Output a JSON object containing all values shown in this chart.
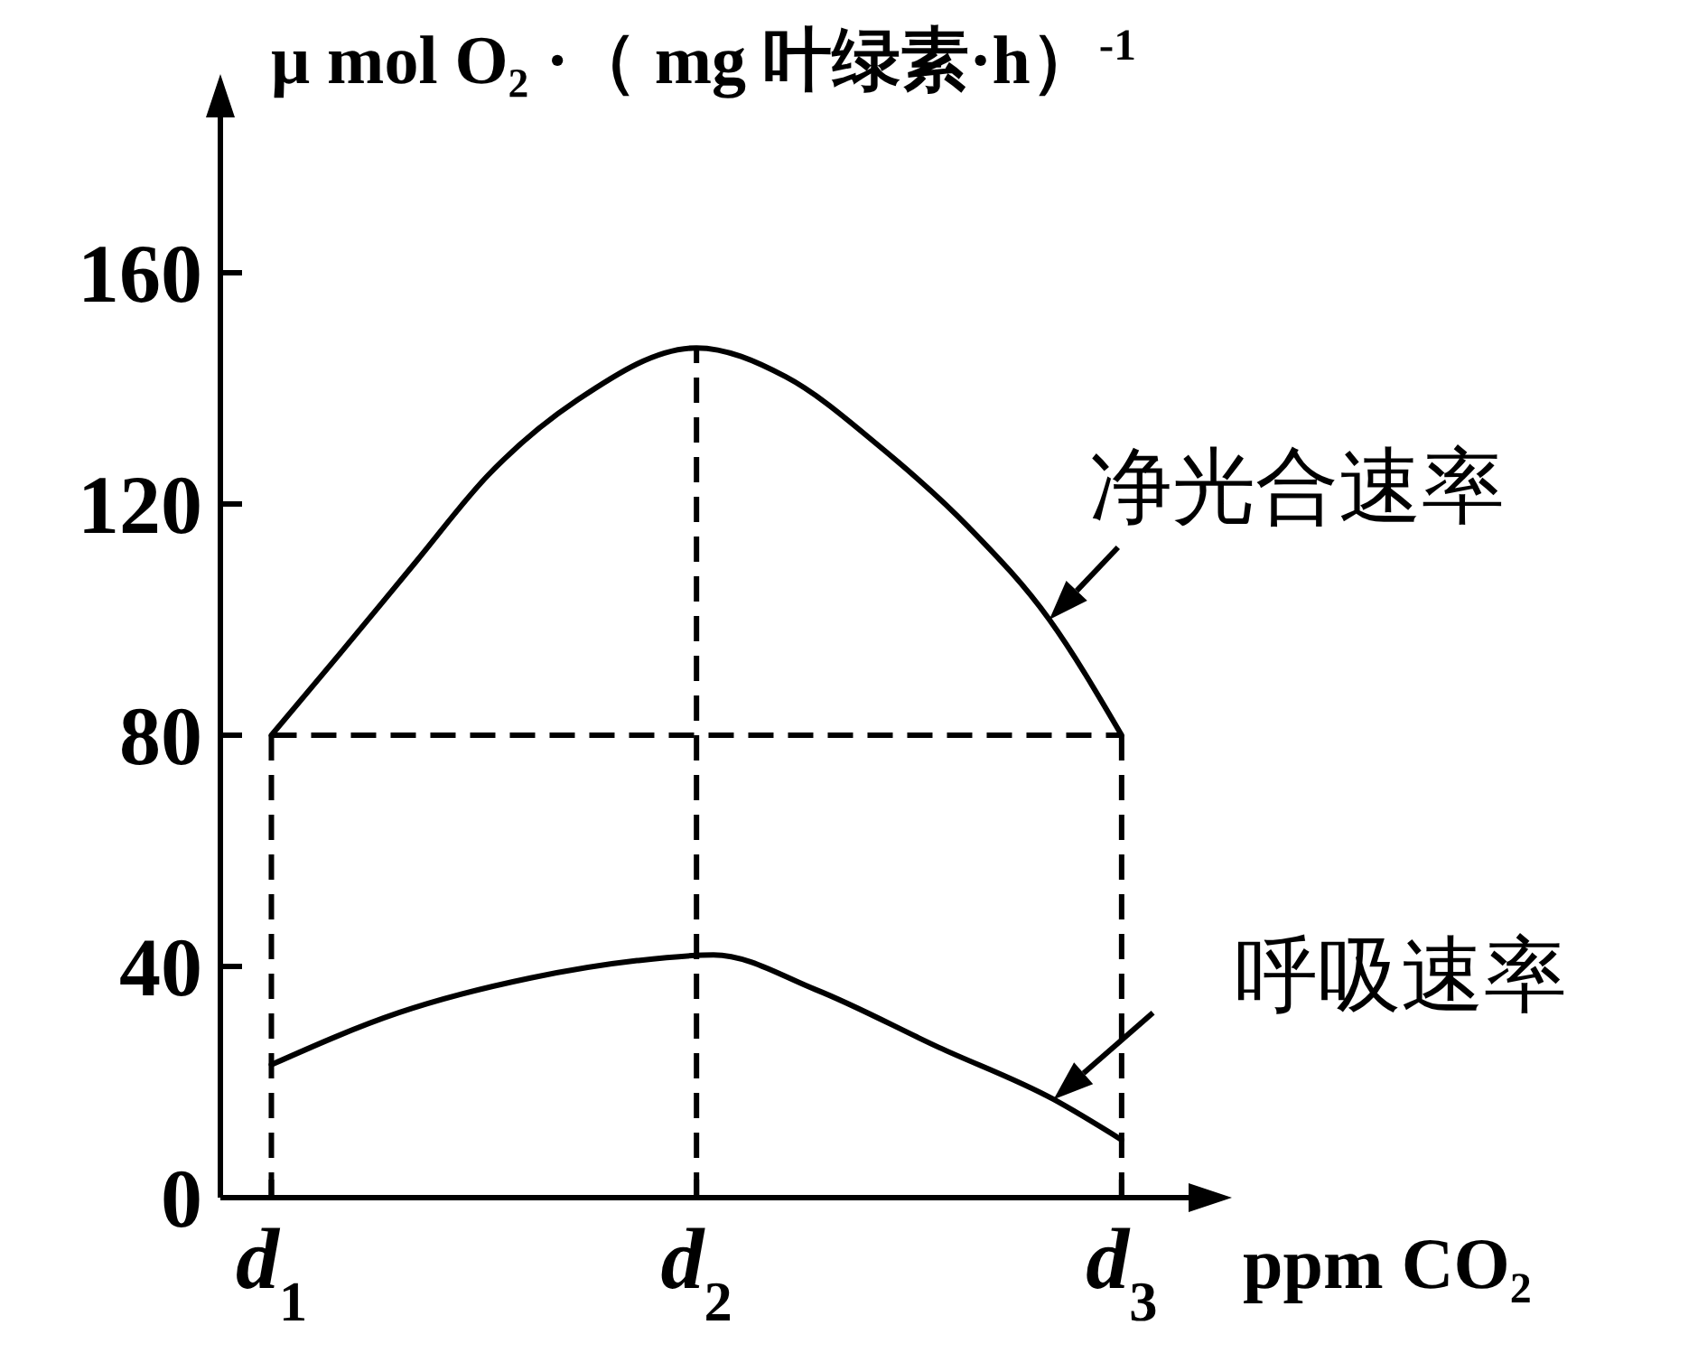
{
  "chart_data": {
    "type": "line",
    "ylabel": "μ mol O₂ ·（ mg 叶绿素·h）$^{-1}$",
    "xlabel": "ppm CO₂",
    "xlim": [
      0.88,
      3.2
    ],
    "xticks": [
      {
        "value": 1,
        "label": "d$_{1}$"
      },
      {
        "value": 2,
        "label": "d$_{2}$"
      },
      {
        "value": 3,
        "label": "d$_{3}$"
      }
    ],
    "ylim": [
      0,
      190
    ],
    "yticks": [
      0,
      40,
      80,
      120,
      160
    ],
    "grid": false,
    "marker": "none",
    "line_style": "solid",
    "series": [
      {
        "name": "净光合速率",
        "color": "#000000",
        "x": [
          1,
          1.16,
          1.34,
          1.51,
          1.72,
          2,
          2.21,
          2.43,
          2.64,
          2.83,
          3
        ],
        "values": [
          80,
          94,
          110,
          125,
          138,
          147,
          142,
          130,
          116,
          100,
          80
        ]
      },
      {
        "name": "呼吸速率",
        "color": "#000000",
        "x": [
          1,
          1.3,
          1.61,
          1.86,
          2.04,
          2.28,
          2.57,
          2.84,
          3
        ],
        "values": [
          23,
          32,
          38,
          41,
          42,
          36,
          26,
          17,
          10
        ]
      }
    ],
    "ref_lines": [
      {
        "axis": "y",
        "value": 80,
        "color": "#000000",
        "line_style": "dashed"
      },
      {
        "axis": "x",
        "value": 1,
        "color": "#000000",
        "line_style": "dashed"
      },
      {
        "axis": "x",
        "value": 2,
        "color": "#000000",
        "line_style": "dashed"
      },
      {
        "axis": "x",
        "value": 3,
        "color": "#000000",
        "line_style": "dashed"
      }
    ]
  }
}
